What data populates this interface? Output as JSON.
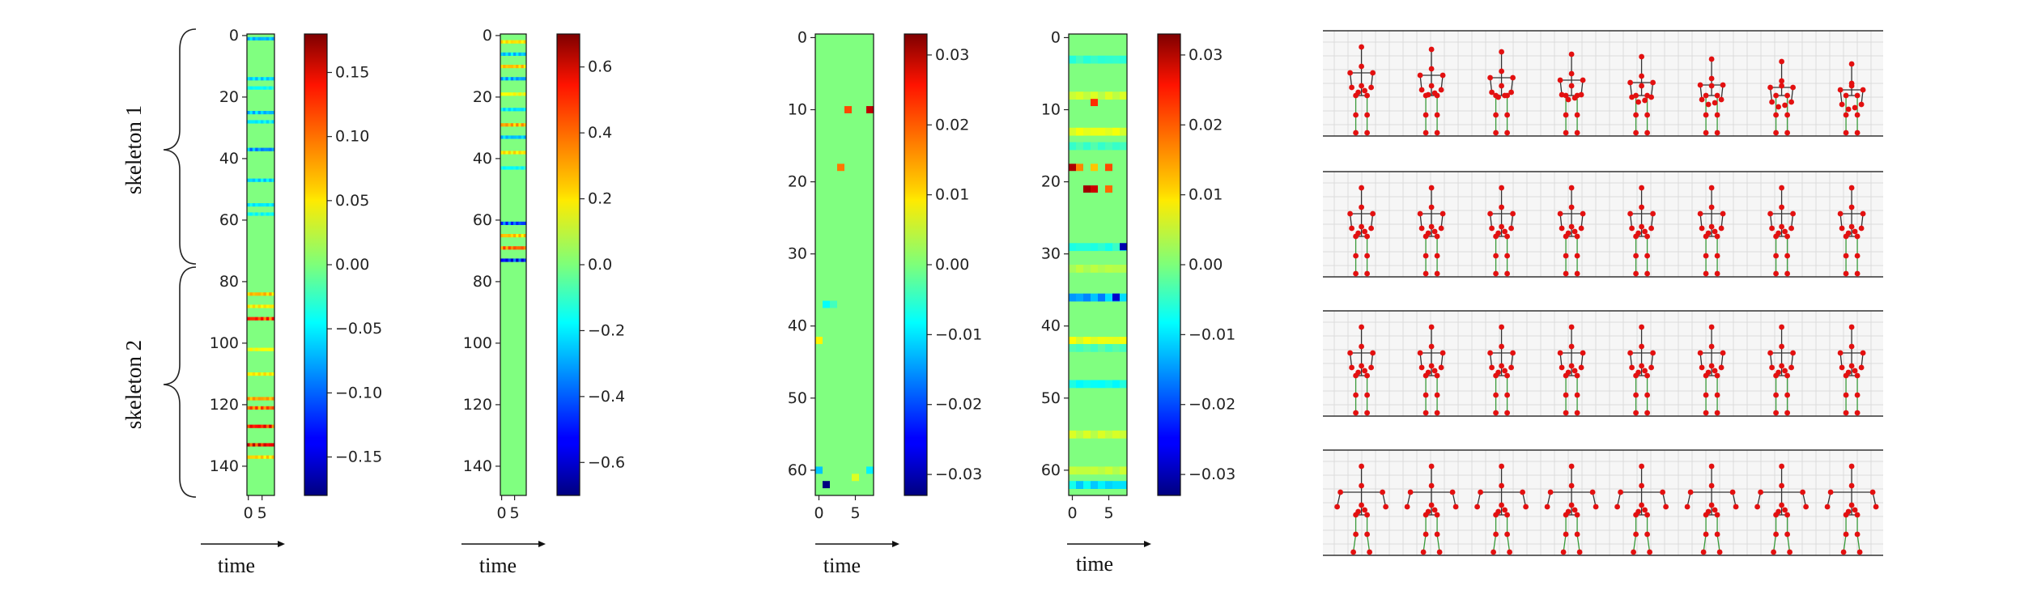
{
  "figure": {
    "time_label": "time",
    "brace_labels": [
      "skeleton 1",
      "skeleton 2"
    ]
  },
  "chart_data": [
    {
      "type": "heatmap",
      "rows": 150,
      "cols": 10,
      "y_ticks": [
        0,
        20,
        40,
        60,
        80,
        100,
        120,
        140
      ],
      "x_ticks": [
        0,
        5
      ],
      "colorbar": {
        "min": -0.18,
        "max": 0.18,
        "ticks": [
          0.15,
          0.1,
          0.05,
          0.0,
          -0.05,
          -0.1,
          -0.15
        ],
        "tick_labels": [
          "0.15",
          "0.10",
          "0.05",
          "0.00",
          "−0.05",
          "−0.10",
          "−0.15"
        ]
      },
      "stripes": [
        {
          "row": 1,
          "value": -0.08
        },
        {
          "row": 14,
          "value": -0.07
        },
        {
          "row": 17,
          "value": -0.05
        },
        {
          "row": 25,
          "value": -0.08
        },
        {
          "row": 28,
          "value": -0.06
        },
        {
          "row": 37,
          "value": -0.1
        },
        {
          "row": 47,
          "value": -0.07
        },
        {
          "row": 55,
          "value": -0.06
        },
        {
          "row": 58,
          "value": -0.05
        },
        {
          "row": 84,
          "value": 0.08
        },
        {
          "row": 88,
          "value": 0.06
        },
        {
          "row": 92,
          "value": 0.14
        },
        {
          "row": 102,
          "value": 0.05
        },
        {
          "row": 110,
          "value": 0.06
        },
        {
          "row": 118,
          "value": 0.09
        },
        {
          "row": 121,
          "value": 0.12
        },
        {
          "row": 127,
          "value": 0.15
        },
        {
          "row": 133,
          "value": 0.16
        },
        {
          "row": 137,
          "value": 0.07
        }
      ],
      "cells": []
    },
    {
      "type": "heatmap",
      "rows": 150,
      "cols": 10,
      "y_ticks": [
        0,
        20,
        40,
        60,
        80,
        100,
        120,
        140
      ],
      "x_ticks": [
        0,
        5
      ],
      "colorbar": {
        "min": -0.7,
        "max": 0.7,
        "ticks": [
          0.6,
          0.4,
          0.2,
          0.0,
          -0.2,
          -0.4,
          -0.6
        ],
        "tick_labels": [
          "0.6",
          "0.4",
          "0.2",
          "0.0",
          "−0.2",
          "−0.4",
          "−0.6"
        ]
      },
      "stripes": [
        {
          "row": 2,
          "value": 0.25
        },
        {
          "row": 6,
          "value": -0.3
        },
        {
          "row": 10,
          "value": 0.3
        },
        {
          "row": 14,
          "value": -0.35
        },
        {
          "row": 19,
          "value": 0.2
        },
        {
          "row": 24,
          "value": -0.25
        },
        {
          "row": 29,
          "value": 0.35
        },
        {
          "row": 33,
          "value": -0.3
        },
        {
          "row": 38,
          "value": 0.25
        },
        {
          "row": 43,
          "value": -0.2
        },
        {
          "row": 61,
          "value": -0.5
        },
        {
          "row": 65,
          "value": 0.3
        },
        {
          "row": 69,
          "value": 0.45
        },
        {
          "row": 73,
          "value": -0.6
        }
      ],
      "cells": []
    },
    {
      "type": "heatmap",
      "rows": 64,
      "cols": 8,
      "y_ticks": [
        0,
        10,
        20,
        30,
        40,
        50,
        60
      ],
      "x_ticks": [
        0,
        5
      ],
      "colorbar": {
        "min": -0.033,
        "max": 0.033,
        "ticks": [
          0.03,
          0.02,
          0.01,
          0.0,
          -0.01,
          -0.02,
          -0.03
        ],
        "tick_labels": [
          "0.03",
          "0.02",
          "0.01",
          "0.00",
          "−0.01",
          "−0.02",
          "−0.03"
        ]
      },
      "stripes": [],
      "cells": [
        {
          "row": 10,
          "col": 4,
          "value": 0.02
        },
        {
          "row": 10,
          "col": 7,
          "value": 0.029
        },
        {
          "row": 18,
          "col": 3,
          "value": 0.017
        },
        {
          "row": 37,
          "col": 1,
          "value": -0.008
        },
        {
          "row": 37,
          "col": 2,
          "value": -0.004
        },
        {
          "row": 42,
          "col": 0,
          "value": 0.009
        },
        {
          "row": 60,
          "col": 0,
          "value": -0.012
        },
        {
          "row": 60,
          "col": 7,
          "value": -0.009
        },
        {
          "row": 61,
          "col": 5,
          "value": 0.006
        },
        {
          "row": 62,
          "col": 1,
          "value": -0.033
        }
      ]
    },
    {
      "type": "heatmap",
      "rows": 64,
      "cols": 8,
      "y_ticks": [
        0,
        10,
        20,
        30,
        40,
        50,
        60
      ],
      "x_ticks": [
        0,
        5
      ],
      "colorbar": {
        "min": -0.033,
        "max": 0.033,
        "ticks": [
          0.03,
          0.02,
          0.01,
          0.0,
          -0.01,
          -0.02,
          -0.03
        ],
        "tick_labels": [
          "0.03",
          "0.02",
          "0.01",
          "0.00",
          "−0.01",
          "−0.02",
          "−0.03"
        ]
      },
      "stripes": [
        {
          "row": 3,
          "value": -0.006
        },
        {
          "row": 8,
          "value": 0.006
        },
        {
          "row": 13,
          "value": 0.008
        },
        {
          "row": 15,
          "value": -0.005
        },
        {
          "row": 29,
          "value": -0.007
        },
        {
          "row": 32,
          "value": 0.004
        },
        {
          "row": 36,
          "value": -0.017
        },
        {
          "row": 42,
          "value": 0.008
        },
        {
          "row": 43,
          "value": -0.004
        },
        {
          "row": 48,
          "value": -0.009
        },
        {
          "row": 55,
          "value": 0.006
        },
        {
          "row": 60,
          "value": 0.005
        },
        {
          "row": 62,
          "value": -0.012
        }
      ],
      "cells": [
        {
          "row": 9,
          "col": 3,
          "value": 0.022
        },
        {
          "row": 18,
          "col": 0,
          "value": 0.03
        },
        {
          "row": 18,
          "col": 1,
          "value": 0.016
        },
        {
          "row": 18,
          "col": 3,
          "value": 0.012
        },
        {
          "row": 18,
          "col": 5,
          "value": 0.02
        },
        {
          "row": 21,
          "col": 2,
          "value": 0.031
        },
        {
          "row": 21,
          "col": 3,
          "value": 0.028
        },
        {
          "row": 21,
          "col": 5,
          "value": 0.018
        },
        {
          "row": 29,
          "col": 7,
          "value": -0.03
        },
        {
          "row": 36,
          "col": 6,
          "value": -0.028
        }
      ]
    }
  ],
  "skeleton_rows": 4,
  "skeletons_per_row": 8
}
